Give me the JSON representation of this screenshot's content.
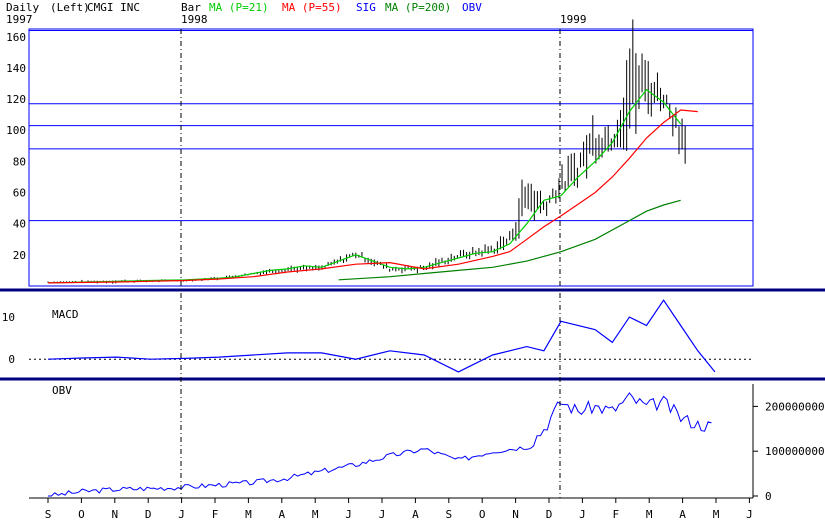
{
  "header": {
    "period": "Daily",
    "scale": "(Left)",
    "symbol_name": "CMGI INC",
    "style": "Bar",
    "legend": [
      {
        "label": "MA (P=21)",
        "color": "#00cc00"
      },
      {
        "label": "MA (P=55)",
        "color": "#ff0000"
      },
      {
        "label": "SIG",
        "color": "#0000ff"
      },
      {
        "label": "MA (P=200)",
        "color": "#008000"
      },
      {
        "label": "OBV",
        "color": "#0000ff"
      }
    ],
    "year_labels": [
      "1997",
      "1998",
      "1999"
    ]
  },
  "colors": {
    "frame": "#0000ff",
    "separator": "#000080",
    "price_bars": "#000000",
    "ma21": "#00cc00",
    "ma55": "#ff0000",
    "ma200": "#008000",
    "macd": "#0000ff",
    "obv": "#0000ff",
    "hlines": "#0000ff"
  },
  "chart_data": [
    {
      "panel": "price",
      "type": "line",
      "y_ticks": [
        "160",
        "140",
        "120",
        "100",
        "80",
        "60",
        "40",
        "20"
      ],
      "ylim": [
        0,
        165
      ],
      "horizontal_levels": [
        164,
        117,
        103,
        88,
        42
      ],
      "series": [
        {
          "name": "MA (P=21)",
          "points": [
            [
              0,
              2
            ],
            [
              1,
              2.5
            ],
            [
              2,
              3
            ],
            [
              3,
              3.5
            ],
            [
              4,
              4
            ],
            [
              5,
              5
            ],
            [
              5.5,
              6
            ],
            [
              6,
              8
            ],
            [
              6.5,
              10
            ],
            [
              7,
              11
            ],
            [
              7.5,
              13
            ],
            [
              8,
              12
            ],
            [
              8.5,
              16
            ],
            [
              9,
              20
            ],
            [
              9.5,
              16
            ],
            [
              10,
              12
            ],
            [
              10.5,
              11
            ],
            [
              11,
              12
            ],
            [
              11.5,
              15
            ],
            [
              12,
              18
            ],
            [
              12.5,
              21
            ],
            [
              13,
              22
            ],
            [
              13.5,
              27
            ],
            [
              14,
              40
            ],
            [
              14.5,
              55
            ],
            [
              15,
              58
            ],
            [
              15.5,
              70
            ],
            [
              16,
              80
            ],
            [
              16.5,
              92
            ],
            [
              17,
              112
            ],
            [
              17.5,
              126
            ],
            [
              18,
              118
            ],
            [
              18.5,
              104
            ]
          ]
        },
        {
          "name": "MA (P=55)",
          "points": [
            [
              0,
              2
            ],
            [
              2,
              2.6
            ],
            [
              4,
              3.5
            ],
            [
              5,
              4.5
            ],
            [
              6,
              6
            ],
            [
              7,
              9
            ],
            [
              8,
              11
            ],
            [
              9,
              14
            ],
            [
              10,
              15
            ],
            [
              11,
              11
            ],
            [
              12,
              14
            ],
            [
              13,
              19
            ],
            [
              13.5,
              22
            ],
            [
              14,
              30
            ],
            [
              14.5,
              38
            ],
            [
              15,
              45
            ],
            [
              16,
              60
            ],
            [
              16.5,
              70
            ],
            [
              17,
              82
            ],
            [
              17.5,
              95
            ],
            [
              18,
              105
            ],
            [
              18.5,
              113
            ],
            [
              19,
              112
            ]
          ]
        },
        {
          "name": "MA (P=200)",
          "points": [
            [
              8.5,
              4
            ],
            [
              10,
              6
            ],
            [
              11,
              8
            ],
            [
              12,
              10
            ],
            [
              13,
              12
            ],
            [
              14,
              16
            ],
            [
              15,
              22
            ],
            [
              16,
              30
            ],
            [
              17,
              42
            ],
            [
              17.5,
              48
            ],
            [
              18,
              52
            ],
            [
              18.5,
              55
            ]
          ]
        }
      ],
      "approx_high_low": [
        [
          0,
          2,
          3
        ],
        [
          2,
          2,
          4
        ],
        [
          4,
          3,
          4
        ],
        [
          5,
          4,
          6
        ],
        [
          6,
          7,
          9
        ],
        [
          7,
          9,
          13
        ],
        [
          8,
          10,
          13
        ],
        [
          9,
          18,
          23
        ],
        [
          10,
          9,
          13
        ],
        [
          11,
          9,
          14
        ],
        [
          12,
          17,
          22
        ],
        [
          13,
          20,
          27
        ],
        [
          13.5,
          25,
          35
        ],
        [
          14,
          40,
          78
        ],
        [
          14.5,
          45,
          58
        ],
        [
          15,
          57,
          73
        ],
        [
          15.5,
          65,
          88
        ],
        [
          16,
          80,
          112
        ],
        [
          16.5,
          88,
          100
        ],
        [
          17,
          92,
          165
        ],
        [
          17.5,
          110,
          148
        ],
        [
          18,
          115,
          128
        ],
        [
          18.5,
          85,
          112
        ]
      ]
    },
    {
      "panel": "macd",
      "type": "line",
      "y_ticks": [
        "10",
        "0"
      ],
      "ylim": [
        -3.5,
        15
      ],
      "series": [
        {
          "name": "MACD",
          "points": [
            [
              0,
              0
            ],
            [
              1,
              0.3
            ],
            [
              2,
              0.5
            ],
            [
              3,
              0
            ],
            [
              4,
              0.2
            ],
            [
              5,
              0.5
            ],
            [
              6,
              1
            ],
            [
              7,
              1.5
            ],
            [
              8,
              1.5
            ],
            [
              9,
              0
            ],
            [
              10,
              2
            ],
            [
              11,
              1
            ],
            [
              12,
              -3
            ],
            [
              13,
              1
            ],
            [
              14,
              3
            ],
            [
              14.5,
              2
            ],
            [
              15,
              9
            ],
            [
              16,
              7
            ],
            [
              16.5,
              4
            ],
            [
              17,
              10
            ],
            [
              17.5,
              8
            ],
            [
              18,
              14
            ],
            [
              18.5,
              8
            ],
            [
              19,
              2
            ],
            [
              19.5,
              -3
            ]
          ]
        }
      ]
    },
    {
      "panel": "obv",
      "type": "line",
      "y_ticks": [
        "200000000",
        "100000000",
        "0"
      ],
      "ylim": [
        0,
        250000000
      ],
      "series": [
        {
          "name": "OBV",
          "points": [
            [
              0,
              0
            ],
            [
              1,
              10000000
            ],
            [
              2,
              15000000
            ],
            [
              3,
              17000000
            ],
            [
              4,
              20000000
            ],
            [
              5,
              25000000
            ],
            [
              6,
              30000000
            ],
            [
              7,
              40000000
            ],
            [
              8,
              55000000
            ],
            [
              9,
              70000000
            ],
            [
              10,
              90000000
            ],
            [
              11,
              105000000
            ],
            [
              12,
              80000000
            ],
            [
              13,
              100000000
            ],
            [
              14,
              110000000
            ],
            [
              14.5,
              150000000
            ],
            [
              15,
              210000000
            ],
            [
              15.5,
              190000000
            ],
            [
              16,
              200000000
            ],
            [
              16.5,
              190000000
            ],
            [
              17,
              220000000
            ],
            [
              17.5,
              200000000
            ],
            [
              18,
              210000000
            ],
            [
              18.5,
              175000000
            ],
            [
              19,
              160000000
            ],
            [
              19.5,
              155000000
            ]
          ]
        }
      ]
    }
  ],
  "x_axis": {
    "month_labels": [
      "S",
      "O",
      "N",
      "D",
      "J",
      "F",
      "M",
      "A",
      "M",
      "J",
      "J",
      "A",
      "S",
      "O",
      "N",
      "D",
      "J",
      "F",
      "M",
      "A",
      "M",
      "J"
    ]
  }
}
